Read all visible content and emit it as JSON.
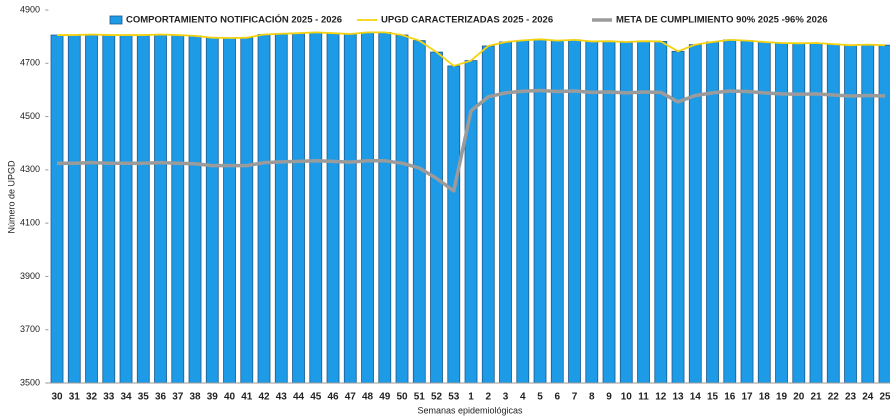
{
  "chart_data": {
    "type": "bar",
    "y_label": "Número de UPGD",
    "x_label": "Semanas epidemiológicas",
    "categories": [
      "30",
      "31",
      "32",
      "33",
      "34",
      "35",
      "36",
      "37",
      "38",
      "39",
      "40",
      "41",
      "42",
      "43",
      "44",
      "45",
      "46",
      "47",
      "48",
      "49",
      "50",
      "51",
      "52",
      "53",
      "1",
      "2",
      "3",
      "4",
      "5",
      "6",
      "7",
      "8",
      "9",
      "10",
      "11",
      "12",
      "13",
      "14",
      "15",
      "16",
      "17",
      "18",
      "19",
      "20",
      "21",
      "22",
      "23",
      "24",
      "25"
    ],
    "ylim": [
      3500,
      4900
    ],
    "yticks": [
      3500,
      3700,
      3900,
      4100,
      4300,
      4500,
      4700,
      4900
    ],
    "grid": false,
    "legend": "top",
    "series": [
      {
        "name": "COMPORTAMIENTO NOTIFICACIÓN 2025 - 2026",
        "type": "bar",
        "color": "#1e9be6",
        "values": [
          4806,
          4806,
          4808,
          4806,
          4806,
          4806,
          4808,
          4806,
          4803,
          4796,
          4795,
          4796,
          4808,
          4811,
          4813,
          4816,
          4813,
          4810,
          4816,
          4816,
          4806,
          4785,
          4742,
          4690,
          4710,
          4765,
          4780,
          4786,
          4790,
          4785,
          4788,
          4782,
          4783,
          4780,
          4783,
          4782,
          4745,
          4770,
          4780,
          4788,
          4785,
          4780,
          4776,
          4775,
          4776,
          4772,
          4768,
          4770,
          4768
        ]
      },
      {
        "name": "UPGD CARACTERIZADAS 2025 - 2026",
        "type": "line",
        "color": "#f5d20f",
        "values": [
          4806,
          4806,
          4808,
          4806,
          4806,
          4806,
          4808,
          4806,
          4803,
          4796,
          4795,
          4796,
          4808,
          4811,
          4813,
          4816,
          4813,
          4810,
          4816,
          4816,
          4806,
          4785,
          4742,
          4690,
          4710,
          4765,
          4780,
          4786,
          4790,
          4785,
          4788,
          4782,
          4783,
          4780,
          4783,
          4782,
          4745,
          4770,
          4780,
          4788,
          4785,
          4780,
          4776,
          4775,
          4776,
          4772,
          4768,
          4770,
          4768
        ]
      },
      {
        "name": "META DE CUMPLIMIENTO 90%  2025 -96%  2026",
        "type": "line",
        "color": "#9b9b9b",
        "values": [
          4325,
          4325,
          4327,
          4325,
          4325,
          4325,
          4327,
          4325,
          4323,
          4316,
          4316,
          4316,
          4327,
          4330,
          4332,
          4334,
          4332,
          4329,
          4334,
          4334,
          4325,
          4307,
          4268,
          4221,
          4522,
          4574,
          4589,
          4595,
          4598,
          4594,
          4596,
          4591,
          4592,
          4589,
          4592,
          4591,
          4555,
          4579,
          4589,
          4596,
          4594,
          4589,
          4585,
          4584,
          4585,
          4581,
          4577,
          4579,
          4577
        ]
      }
    ]
  }
}
